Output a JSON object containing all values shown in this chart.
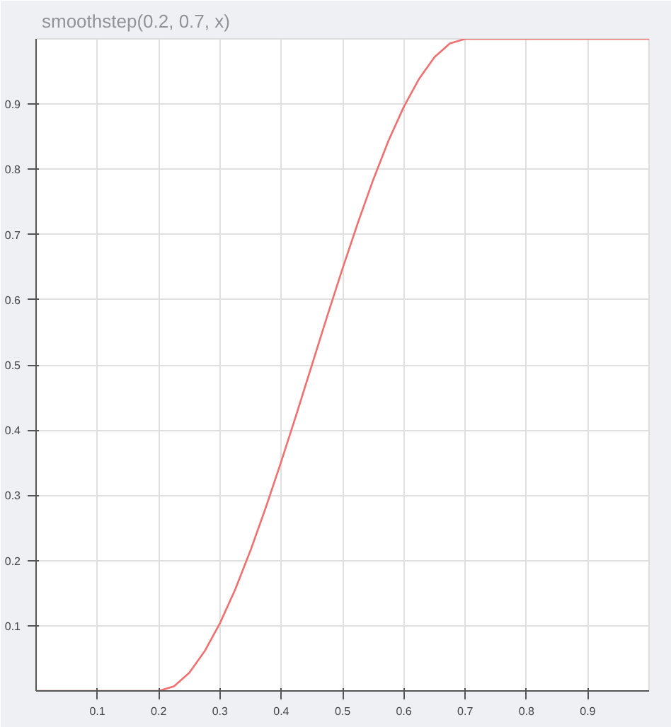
{
  "chart_data": {
    "type": "line",
    "title": "smoothstep(0.2, 0.7, x)",
    "x": [
      0,
      0.1,
      0.2,
      0.225,
      0.25,
      0.275,
      0.3,
      0.325,
      0.35,
      0.375,
      0.4,
      0.425,
      0.45,
      0.475,
      0.5,
      0.525,
      0.55,
      0.575,
      0.6,
      0.625,
      0.65,
      0.675,
      0.7,
      0.8,
      0.9,
      1
    ],
    "series": [
      {
        "color": "#f07070",
        "values": [
          0,
          0,
          0,
          0.007,
          0.028,
          0.061,
          0.104,
          0.156,
          0.216,
          0.282,
          0.352,
          0.425,
          0.5,
          0.575,
          0.648,
          0.718,
          0.784,
          0.844,
          0.896,
          0.939,
          0.972,
          0.993,
          1,
          1,
          1,
          1
        ]
      }
    ],
    "xlim": [
      0,
      1
    ],
    "ylim": [
      0,
      1
    ],
    "xticks": [
      0.1,
      0.2,
      0.3,
      0.4,
      0.5,
      0.6,
      0.7,
      0.8,
      0.9
    ],
    "yticks": [
      0.1,
      0.2,
      0.3,
      0.4,
      0.5,
      0.6,
      0.7,
      0.8,
      0.9
    ],
    "grid": true,
    "marker": "none",
    "line_style": "solid"
  }
}
